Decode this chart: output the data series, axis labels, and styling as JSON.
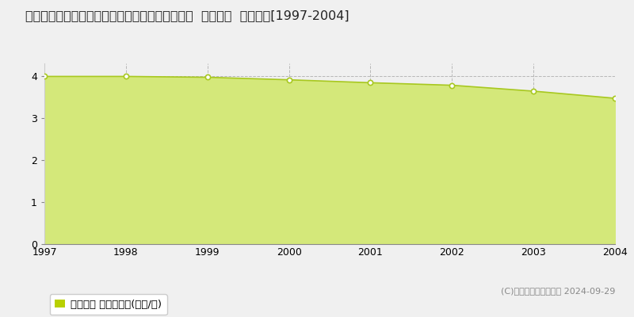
{
  "title": "青森県西津軽郡深浦町大字柳田字桜田７４番１外  基準地価  地価推移[1997-2004]",
  "years": [
    1997,
    1998,
    1999,
    2000,
    2001,
    2002,
    2003,
    2004
  ],
  "values": [
    3.99,
    3.99,
    3.97,
    3.91,
    3.84,
    3.78,
    3.64,
    3.47
  ],
  "line_color": "#a8c820",
  "fill_color": "#d4e87a",
  "fill_alpha": 1.0,
  "marker_color": "white",
  "marker_edge_color": "#a8c820",
  "ylim": [
    0,
    4.3
  ],
  "yticks": [
    0,
    1,
    2,
    3,
    4
  ],
  "background_color": "#f0f0f0",
  "plot_bg_color": "#f0f0f0",
  "grid_color": "#aaaaaa",
  "legend_label": "基準地価 平均坪単価(万円/坪)",
  "legend_color": "#b8d000",
  "copyright_text": "(C)土地価格ドットコム 2024-09-29",
  "title_fontsize": 11.5,
  "axis_fontsize": 9,
  "legend_fontsize": 9.5
}
